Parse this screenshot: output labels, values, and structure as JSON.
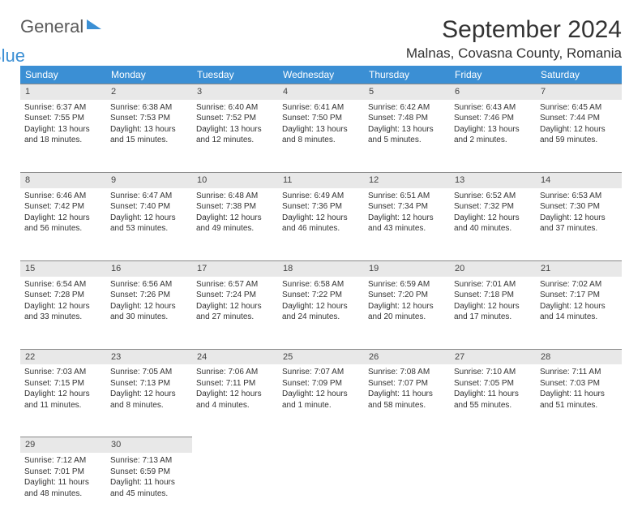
{
  "logo": {
    "main": "General",
    "sub": "Blue"
  },
  "title": "September 2024",
  "location": "Malnas, Covasna County, Romania",
  "colors": {
    "header_bg": "#3b8fd4",
    "header_text": "#ffffff",
    "daynum_bg": "#e8e8e8",
    "daynum_border": "#888888",
    "text": "#333333"
  },
  "weekdays": [
    "Sunday",
    "Monday",
    "Tuesday",
    "Wednesday",
    "Thursday",
    "Friday",
    "Saturday"
  ],
  "days": [
    {
      "n": 1,
      "sr": "6:37 AM",
      "ss": "7:55 PM",
      "dl": "13 hours and 18 minutes."
    },
    {
      "n": 2,
      "sr": "6:38 AM",
      "ss": "7:53 PM",
      "dl": "13 hours and 15 minutes."
    },
    {
      "n": 3,
      "sr": "6:40 AM",
      "ss": "7:52 PM",
      "dl": "13 hours and 12 minutes."
    },
    {
      "n": 4,
      "sr": "6:41 AM",
      "ss": "7:50 PM",
      "dl": "13 hours and 8 minutes."
    },
    {
      "n": 5,
      "sr": "6:42 AM",
      "ss": "7:48 PM",
      "dl": "13 hours and 5 minutes."
    },
    {
      "n": 6,
      "sr": "6:43 AM",
      "ss": "7:46 PM",
      "dl": "13 hours and 2 minutes."
    },
    {
      "n": 7,
      "sr": "6:45 AM",
      "ss": "7:44 PM",
      "dl": "12 hours and 59 minutes."
    },
    {
      "n": 8,
      "sr": "6:46 AM",
      "ss": "7:42 PM",
      "dl": "12 hours and 56 minutes."
    },
    {
      "n": 9,
      "sr": "6:47 AM",
      "ss": "7:40 PM",
      "dl": "12 hours and 53 minutes."
    },
    {
      "n": 10,
      "sr": "6:48 AM",
      "ss": "7:38 PM",
      "dl": "12 hours and 49 minutes."
    },
    {
      "n": 11,
      "sr": "6:49 AM",
      "ss": "7:36 PM",
      "dl": "12 hours and 46 minutes."
    },
    {
      "n": 12,
      "sr": "6:51 AM",
      "ss": "7:34 PM",
      "dl": "12 hours and 43 minutes."
    },
    {
      "n": 13,
      "sr": "6:52 AM",
      "ss": "7:32 PM",
      "dl": "12 hours and 40 minutes."
    },
    {
      "n": 14,
      "sr": "6:53 AM",
      "ss": "7:30 PM",
      "dl": "12 hours and 37 minutes."
    },
    {
      "n": 15,
      "sr": "6:54 AM",
      "ss": "7:28 PM",
      "dl": "12 hours and 33 minutes."
    },
    {
      "n": 16,
      "sr": "6:56 AM",
      "ss": "7:26 PM",
      "dl": "12 hours and 30 minutes."
    },
    {
      "n": 17,
      "sr": "6:57 AM",
      "ss": "7:24 PM",
      "dl": "12 hours and 27 minutes."
    },
    {
      "n": 18,
      "sr": "6:58 AM",
      "ss": "7:22 PM",
      "dl": "12 hours and 24 minutes."
    },
    {
      "n": 19,
      "sr": "6:59 AM",
      "ss": "7:20 PM",
      "dl": "12 hours and 20 minutes."
    },
    {
      "n": 20,
      "sr": "7:01 AM",
      "ss": "7:18 PM",
      "dl": "12 hours and 17 minutes."
    },
    {
      "n": 21,
      "sr": "7:02 AM",
      "ss": "7:17 PM",
      "dl": "12 hours and 14 minutes."
    },
    {
      "n": 22,
      "sr": "7:03 AM",
      "ss": "7:15 PM",
      "dl": "12 hours and 11 minutes."
    },
    {
      "n": 23,
      "sr": "7:05 AM",
      "ss": "7:13 PM",
      "dl": "12 hours and 8 minutes."
    },
    {
      "n": 24,
      "sr": "7:06 AM",
      "ss": "7:11 PM",
      "dl": "12 hours and 4 minutes."
    },
    {
      "n": 25,
      "sr": "7:07 AM",
      "ss": "7:09 PM",
      "dl": "12 hours and 1 minute."
    },
    {
      "n": 26,
      "sr": "7:08 AM",
      "ss": "7:07 PM",
      "dl": "11 hours and 58 minutes."
    },
    {
      "n": 27,
      "sr": "7:10 AM",
      "ss": "7:05 PM",
      "dl": "11 hours and 55 minutes."
    },
    {
      "n": 28,
      "sr": "7:11 AM",
      "ss": "7:03 PM",
      "dl": "11 hours and 51 minutes."
    },
    {
      "n": 29,
      "sr": "7:12 AM",
      "ss": "7:01 PM",
      "dl": "11 hours and 48 minutes."
    },
    {
      "n": 30,
      "sr": "7:13 AM",
      "ss": "6:59 PM",
      "dl": "11 hours and 45 minutes."
    }
  ],
  "labels": {
    "sunrise": "Sunrise:",
    "sunset": "Sunset:",
    "daylight": "Daylight:"
  },
  "start_weekday": 0
}
